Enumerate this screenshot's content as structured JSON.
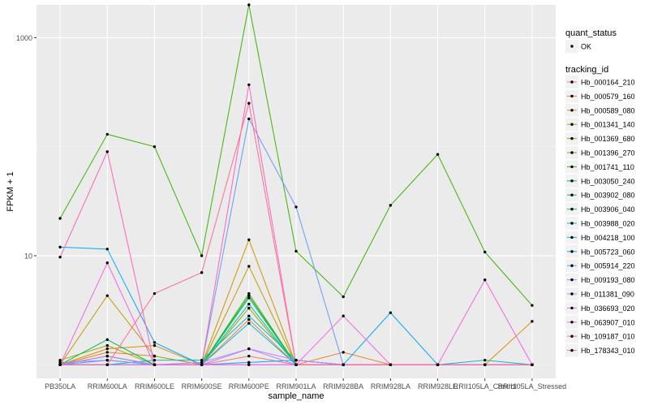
{
  "chart_data": {
    "type": "line",
    "xlabel": "sample_name",
    "ylabel": "FPKM + 1",
    "y_scale": "log10",
    "ylim": [
      0.75,
      2000
    ],
    "y_ticks": [
      10,
      1000
    ],
    "y_tick_labels": [
      "10",
      "1000"
    ],
    "grid": true,
    "legend_position": "right",
    "categories": [
      "PB350LA",
      "RRIM600LA",
      "RRIM600LE",
      "RRIM600SE",
      "RRIM600PE",
      "RRIM901LA",
      "RRIM928BA",
      "RRIM928LA",
      "RRIM928LE",
      "RRII105LA_Control",
      "RRII105LA_Stressed"
    ],
    "quant_status_legend": {
      "title": "quant_status",
      "items": [
        "OK"
      ]
    },
    "legend_title": "tracking_id",
    "series": [
      {
        "name": "Hb_000164_210",
        "color": "#F8766D",
        "values": [
          1.0,
          1.0,
          1.0,
          1.0,
          1.2,
          1.0,
          1.0,
          1.0,
          1.0,
          1.0,
          1.0
        ]
      },
      {
        "name": "Hb_000579_160",
        "color": "#EA8331",
        "values": [
          1.0,
          1.3,
          1.2,
          1.0,
          2.6,
          1.0,
          1.3,
          1.0,
          1.0,
          1.0,
          1.0
        ]
      },
      {
        "name": "Hb_000589_080",
        "color": "#D89000",
        "values": [
          1.0,
          1.4,
          1.5,
          1.0,
          14.0,
          1.0,
          1.0,
          1.0,
          1.0,
          1.0,
          2.5
        ]
      },
      {
        "name": "Hb_001341_140",
        "color": "#C09B00",
        "values": [
          1.0,
          4.3,
          1.2,
          1.0,
          8.0,
          1.0,
          1.0,
          1.0,
          1.0,
          1.0,
          1.0
        ]
      },
      {
        "name": "Hb_001369_680",
        "color": "#A3A500",
        "values": [
          1.1,
          1.5,
          1.0,
          1.0,
          3.3,
          1.0,
          1.0,
          1.0,
          1.0,
          1.0,
          1.0
        ]
      },
      {
        "name": "Hb_001396_270",
        "color": "#7CAE00",
        "values": [
          1.0,
          1.2,
          1.0,
          1.0,
          4.5,
          1.0,
          1.0,
          1.0,
          1.0,
          1.0,
          1.0
        ]
      },
      {
        "name": "Hb_001741_110",
        "color": "#39B600",
        "values": [
          22.0,
          130.0,
          100.0,
          10.0,
          2000.0,
          11.0,
          4.2,
          29.0,
          85.0,
          10.8,
          3.5
        ]
      },
      {
        "name": "Hb_003050_240",
        "color": "#00BB4E",
        "values": [
          1.0,
          1.7,
          1.0,
          1.0,
          4.3,
          1.0,
          1.0,
          1.0,
          1.0,
          1.0,
          1.0
        ]
      },
      {
        "name": "Hb_003902_080",
        "color": "#00BF7D",
        "values": [
          1.0,
          1.2,
          1.0,
          1.0,
          4.1,
          1.0,
          1.0,
          1.0,
          1.0,
          1.0,
          1.0
        ]
      },
      {
        "name": "Hb_003906_040",
        "color": "#00C1A3",
        "values": [
          1.0,
          1.1,
          1.0,
          1.0,
          3.6,
          1.0,
          1.0,
          1.0,
          1.0,
          1.0,
          1.0
        ]
      },
      {
        "name": "Hb_003988_020",
        "color": "#00BFC4",
        "values": [
          1.0,
          1.0,
          1.1,
          1.1,
          2.8,
          1.1,
          1.0,
          1.0,
          1.0,
          1.1,
          1.0
        ]
      },
      {
        "name": "Hb_004218_100",
        "color": "#00B8E7",
        "values": [
          1.0,
          1.0,
          1.0,
          1.0,
          2.4,
          1.0,
          1.0,
          1.0,
          1.0,
          1.0,
          1.0
        ]
      },
      {
        "name": "Hb_005723_060",
        "color": "#00A9FF",
        "values": [
          12.0,
          11.5,
          1.6,
          1.0,
          1.05,
          1.1,
          1.0,
          3.0,
          1.0,
          1.0,
          1.0
        ]
      },
      {
        "name": "Hb_005914_220",
        "color": "#619CFF",
        "values": [
          1.0,
          1.1,
          1.0,
          1.0,
          180.0,
          28.0,
          1.0,
          1.0,
          1.0,
          1.0,
          1.0
        ]
      },
      {
        "name": "Hb_009193_080",
        "color": "#9F8CFF",
        "values": [
          1.05,
          1.1,
          1.0,
          1.05,
          1.4,
          1.0,
          1.0,
          1.0,
          1.0,
          1.0,
          1.0
        ]
      },
      {
        "name": "Hb_011381_090",
        "color": "#C77CFF",
        "values": [
          1.0,
          1.2,
          1.0,
          1.0,
          1.4,
          1.1,
          1.0,
          1.0,
          1.0,
          1.0,
          1.0
        ]
      },
      {
        "name": "Hb_036693_020",
        "color": "#E76BF3",
        "values": [
          1.0,
          1.0,
          1.0,
          1.0,
          1.0,
          1.0,
          1.0,
          1.0,
          1.0,
          1.0,
          1.0
        ]
      },
      {
        "name": "Hb_063907_010",
        "color": "#F763E0",
        "values": [
          1.0,
          8.6,
          1.0,
          1.0,
          1.0,
          1.0,
          2.8,
          1.0,
          1.0,
          6.0,
          1.0
        ]
      },
      {
        "name": "Hb_109187_010",
        "color": "#FF62BC",
        "values": [
          9.7,
          90.0,
          1.0,
          1.0,
          370.0,
          1.0,
          1.0,
          1.0,
          1.0,
          1.0,
          1.0
        ]
      },
      {
        "name": "Hb_178343_010",
        "color": "#FF6C91",
        "values": [
          1.0,
          1.0,
          4.5,
          7.0,
          250.0,
          1.0,
          1.0,
          1.0,
          1.0,
          1.0,
          1.0
        ]
      }
    ]
  }
}
